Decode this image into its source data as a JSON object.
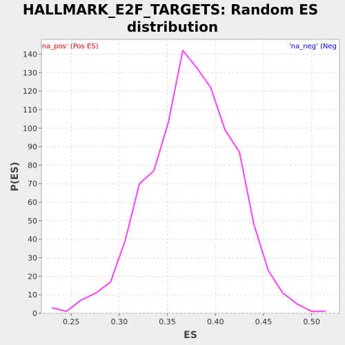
{
  "chart_data": {
    "type": "line",
    "title_line1": "HALLMARK_E2F_TARGETS: Random ES",
    "title_line2": "distribution",
    "xlabel": "ES",
    "ylabel": "P(ES)",
    "xlim": [
      0.219,
      0.529
    ],
    "ylim": [
      0,
      148
    ],
    "xticks": [
      0.25,
      0.3,
      0.35,
      0.4,
      0.45,
      0.5
    ],
    "xtick_labels": [
      "0.25",
      "0.30",
      "0.35",
      "0.40",
      "0.45",
      "0.50"
    ],
    "yticks": [
      0,
      10,
      20,
      30,
      40,
      50,
      60,
      70,
      80,
      90,
      100,
      110,
      120,
      130,
      140
    ],
    "ytick_labels": [
      "0",
      "10",
      "20",
      "30",
      "40",
      "50",
      "60",
      "70",
      "80",
      "90",
      "100",
      "110",
      "120",
      "130",
      "140"
    ],
    "grid": true,
    "pos_label": "'na_pos' (Pos ES)",
    "neg_label": "'na_neg' (Neg ES)",
    "pos_label_color": "#ff0000",
    "neg_label_color": "#0000ff",
    "series": [
      {
        "color": "#ff40ff",
        "x": [
          0.23,
          0.245,
          0.26,
          0.276,
          0.291,
          0.306,
          0.321,
          0.336,
          0.351,
          0.366,
          0.38,
          0.395,
          0.41,
          0.425,
          0.44,
          0.455,
          0.47,
          0.485,
          0.5,
          0.515
        ],
        "y": [
          3,
          1,
          7,
          11,
          17,
          39,
          70,
          77,
          103,
          142,
          133,
          122,
          99,
          87,
          48,
          23,
          11,
          5,
          1,
          1
        ]
      }
    ]
  }
}
